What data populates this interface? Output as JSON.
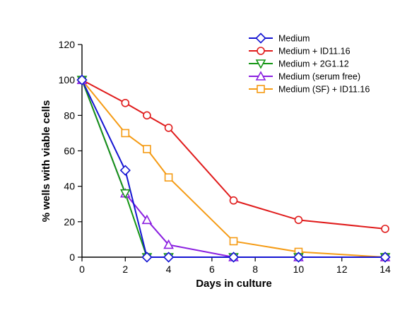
{
  "chart_data": {
    "type": "line",
    "xlabel": "Days in culture",
    "ylabel": "% wells with viable cells",
    "xlim": [
      0,
      14
    ],
    "ylim": [
      0,
      120
    ],
    "xticks": [
      0,
      2,
      4,
      6,
      8,
      10,
      12,
      14
    ],
    "yticks": [
      0,
      20,
      40,
      60,
      80,
      100,
      120
    ],
    "grid": false,
    "legend_position": "top-right",
    "series": [
      {
        "name": "Medium",
        "color": "#1414d2",
        "marker": "diamond",
        "x": [
          0,
          2,
          3,
          4,
          7,
          10,
          14
        ],
        "y": [
          100,
          49,
          0,
          0,
          0,
          0,
          0
        ]
      },
      {
        "name": "Medium + ID11.16",
        "color": "#e01b1b",
        "marker": "circle",
        "x": [
          0,
          2,
          3,
          4,
          7,
          10,
          14
        ],
        "y": [
          100,
          87,
          80,
          73,
          32,
          21,
          16
        ]
      },
      {
        "name": "Medium + 2G1.12",
        "color": "#149614",
        "marker": "triangle-down",
        "x": [
          0,
          2,
          3,
          4,
          7,
          10,
          14
        ],
        "y": [
          100,
          36,
          0,
          0,
          0,
          0,
          0
        ]
      },
      {
        "name": "Medium  (serum free)",
        "color": "#8a1fe0",
        "marker": "triangle-up",
        "x": [
          0,
          2,
          3,
          4,
          7,
          10,
          14
        ],
        "y": [
          100,
          36,
          21,
          7,
          0,
          0,
          0
        ]
      },
      {
        "name": "Medium (SF) + ID11.16",
        "color": "#f59b14",
        "marker": "square",
        "x": [
          0,
          2,
          3,
          4,
          7,
          10,
          14
        ],
        "y": [
          100,
          70,
          61,
          45,
          9,
          3,
          0
        ]
      }
    ]
  }
}
